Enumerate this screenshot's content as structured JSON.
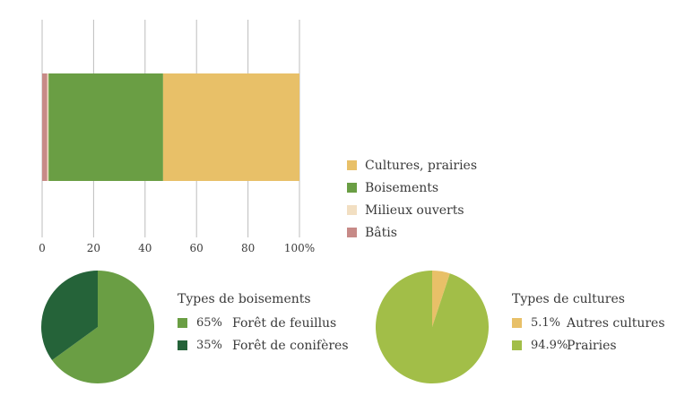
{
  "chart_data": [
    {
      "type": "bar",
      "orientation": "horizontal-stacked",
      "xlim": [
        0,
        100
      ],
      "ticks": [
        "0",
        "20",
        "40",
        "60",
        "80",
        "100%"
      ],
      "grid": true,
      "legend_position": "right",
      "series": [
        {
          "name": "Bâtis",
          "value": 2.0,
          "color": "#c78a87"
        },
        {
          "name": "Milieux ouverts",
          "value": 0.5,
          "color": "#f2dfc2"
        },
        {
          "name": "Boisements",
          "value": 44.5,
          "color": "#6a9e44"
        },
        {
          "name": "Cultures, prairies",
          "value": 53.0,
          "color": "#e8c068"
        }
      ],
      "legend_order": [
        "Cultures, prairies",
        "Boisements",
        "Milieux ouverts",
        "Bâtis"
      ]
    },
    {
      "type": "pie",
      "title": "Types de boisements",
      "slices": [
        {
          "label": "Forêt de feuillus",
          "value": 65,
          "value_text": "65%",
          "color": "#6a9e44"
        },
        {
          "label": "Forêt de conifères",
          "value": 35,
          "value_text": "35%",
          "color": "#256339"
        }
      ]
    },
    {
      "type": "pie",
      "title": "Types de cultures",
      "slices": [
        {
          "label": "Autres cultures",
          "value": 5.1,
          "value_text": "5.1%",
          "color": "#e8c068"
        },
        {
          "label": "Prairies",
          "value": 94.9,
          "value_text": "94.9%",
          "color": "#a2be48"
        }
      ]
    }
  ]
}
